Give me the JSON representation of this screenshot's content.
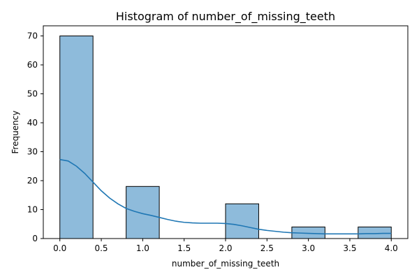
{
  "chart_data": {
    "type": "bar",
    "title": "Histogram of number_of_missing_teeth",
    "xlabel": "number_of_missing_teeth",
    "ylabel": "Frequency",
    "xlim": [
      -0.2,
      4.2
    ],
    "ylim": [
      0,
      73.5
    ],
    "x_ticks": [
      0.0,
      0.5,
      1.0,
      1.5,
      2.0,
      2.5,
      3.0,
      3.5,
      4.0
    ],
    "x_tick_labels": [
      "0.0",
      "0.5",
      "1.0",
      "1.5",
      "2.0",
      "2.5",
      "3.0",
      "3.5",
      "4.0"
    ],
    "y_ticks": [
      0,
      10,
      20,
      30,
      40,
      50,
      60,
      70
    ],
    "y_tick_labels": [
      "0",
      "10",
      "20",
      "30",
      "40",
      "50",
      "60",
      "70"
    ],
    "bins": [
      {
        "x0": 0.0,
        "x1": 0.4,
        "count": 70
      },
      {
        "x0": 0.4,
        "x1": 0.8,
        "count": 0
      },
      {
        "x0": 0.8,
        "x1": 1.2,
        "count": 18
      },
      {
        "x0": 1.2,
        "x1": 1.6,
        "count": 0
      },
      {
        "x0": 1.6,
        "x1": 2.0,
        "count": 0
      },
      {
        "x0": 2.0,
        "x1": 2.4,
        "count": 12
      },
      {
        "x0": 2.4,
        "x1": 2.8,
        "count": 0
      },
      {
        "x0": 2.8,
        "x1": 3.2,
        "count": 4
      },
      {
        "x0": 3.2,
        "x1": 3.6,
        "count": 0
      },
      {
        "x0": 3.6,
        "x1": 4.0,
        "count": 4
      }
    ],
    "kde": {
      "x": [
        0.0,
        0.1,
        0.2,
        0.3,
        0.4,
        0.5,
        0.6,
        0.7,
        0.8,
        0.9,
        1.0,
        1.1,
        1.2,
        1.3,
        1.4,
        1.5,
        1.6,
        1.7,
        1.8,
        1.9,
        2.0,
        2.1,
        2.2,
        2.3,
        2.4,
        2.5,
        2.6,
        2.7,
        2.8,
        2.9,
        3.0,
        3.1,
        3.2,
        3.3,
        3.4,
        3.5,
        3.6,
        3.7,
        3.8,
        3.9,
        4.0
      ],
      "y": [
        27.3,
        26.8,
        25.0,
        22.5,
        19.5,
        16.5,
        14.0,
        12.0,
        10.4,
        9.4,
        8.6,
        8.0,
        7.3,
        6.6,
        6.0,
        5.6,
        5.4,
        5.3,
        5.3,
        5.3,
        5.2,
        4.9,
        4.4,
        3.8,
        3.2,
        2.8,
        2.5,
        2.2,
        2.0,
        1.9,
        1.8,
        1.7,
        1.6,
        1.6,
        1.6,
        1.6,
        1.6,
        1.7,
        1.7,
        1.8,
        1.8
      ]
    },
    "grid": false,
    "legend": "none",
    "colors": {
      "bar_fill": "#8ebbdb",
      "bar_edge": "#000000",
      "kde_line": "#1f77b4"
    }
  }
}
